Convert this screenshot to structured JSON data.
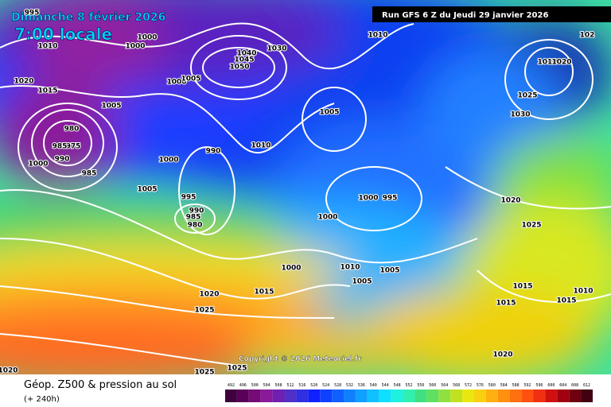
{
  "header": {
    "date": "Dimanche 8 février 2026",
    "time": "7:00 locale",
    "run": "Run GFS 6 Z du Jeudi 29 janvier 2026"
  },
  "copyright": "Copyright © 2026 Meteociel.fr",
  "footer": {
    "title": "Géop. Z500 & pression au sol",
    "lead": "(+ 240h)"
  },
  "legend": {
    "ticks": [
      492,
      496,
      500,
      504,
      508,
      512,
      516,
      520,
      524,
      528,
      532,
      536,
      540,
      544,
      548,
      552,
      556,
      560,
      564,
      568,
      572,
      576,
      580,
      584,
      588,
      592,
      596,
      600,
      604,
      608,
      612
    ]
  },
  "isobar_labels": [
    995,
    1010,
    1000,
    1000,
    1020,
    1015,
    1005,
    980,
    975,
    985,
    990,
    1000,
    985,
    1005,
    1000,
    990,
    995,
    990,
    985,
    980,
    1000,
    1005,
    1040,
    1045,
    1050,
    1030,
    1010,
    1010,
    1005,
    1000,
    995,
    1000,
    1000,
    1010,
    1005,
    1005,
    1015,
    1020,
    1025,
    1025,
    1025,
    1020,
    1010,
    1020,
    1025,
    1030,
    1020,
    1025,
    1015,
    1015,
    1015,
    1010,
    1020,
    102
  ]
}
